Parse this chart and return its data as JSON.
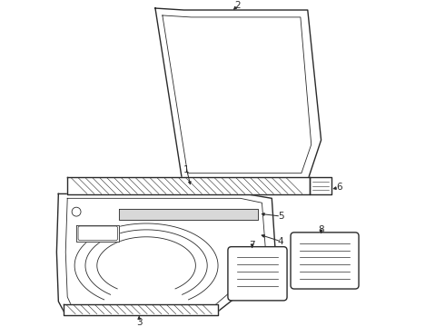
{
  "bg_color": "#ffffff",
  "line_color": "#2a2a2a",
  "figsize": [
    4.9,
    3.6
  ],
  "dpi": 100,
  "callout_fs": 7.5
}
